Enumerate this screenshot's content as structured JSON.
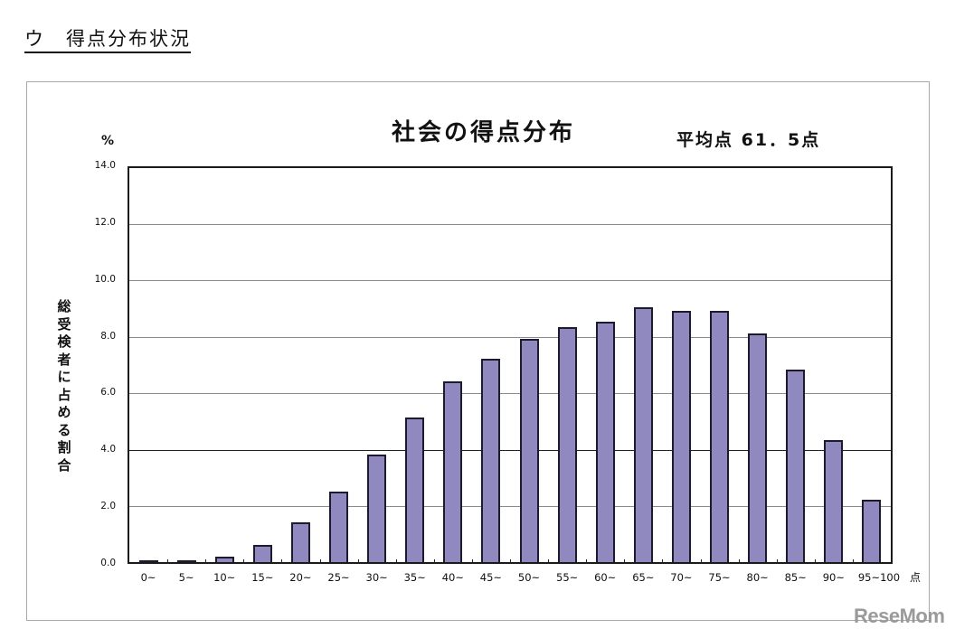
{
  "page": {
    "section_heading": "ウ　得点分布状況",
    "watermark": "ReseMom"
  },
  "chart_data": {
    "type": "bar",
    "title": "社会の得点分布",
    "subtitle": "平均点 61．5点",
    "mean_score": 61.5,
    "xlabel": "点",
    "ylabel": "総受検者に占める割合",
    "y_unit": "%",
    "ylim": [
      0,
      14
    ],
    "yticks": [
      "0.0",
      "2.0",
      "4.0",
      "6.0",
      "8.0",
      "10.0",
      "12.0",
      "14.0"
    ],
    "grid": true,
    "legend": null,
    "categories": [
      "0~",
      "5~",
      "10~",
      "15~",
      "20~",
      "25~",
      "30~",
      "35~",
      "40~",
      "45~",
      "50~",
      "55~",
      "60~",
      "65~",
      "70~",
      "75~",
      "80~",
      "85~",
      "90~",
      "95~100"
    ],
    "values": [
      0.02,
      0.05,
      0.2,
      0.6,
      1.4,
      2.5,
      3.8,
      5.1,
      6.4,
      7.2,
      7.9,
      8.3,
      8.5,
      9.0,
      8.9,
      8.9,
      8.1,
      6.8,
      4.3,
      2.2
    ],
    "colors": {
      "bar_fill": "#9089c0",
      "bar_border": "#1c1a2c",
      "grid": "#8a8a8a"
    }
  }
}
